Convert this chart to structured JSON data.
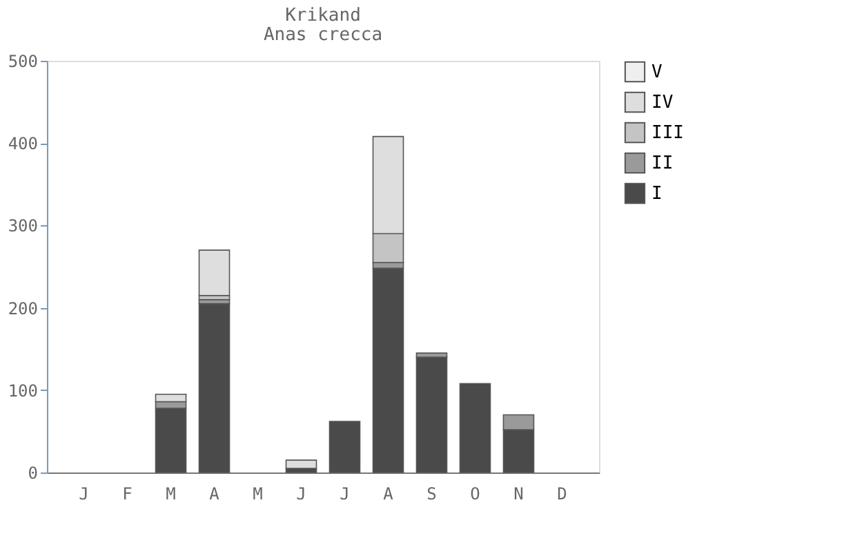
{
  "chart_data": {
    "type": "bar",
    "title": "Krikand",
    "subtitle": "Anas crecca",
    "stacked": true,
    "categories": [
      "J",
      "F",
      "M",
      "A",
      "M",
      "J",
      "J",
      "A",
      "S",
      "O",
      "N",
      "D"
    ],
    "series": [
      {
        "name": "I",
        "color": "#4a4a4a",
        "values": [
          0,
          0,
          78,
          205,
          0,
          5,
          62,
          248,
          140,
          108,
          52,
          0
        ]
      },
      {
        "name": "II",
        "color": "#9a9a9a",
        "values": [
          0,
          0,
          8,
          5,
          0,
          0,
          0,
          7,
          5,
          0,
          18,
          0
        ]
      },
      {
        "name": "III",
        "color": "#c4c4c4",
        "values": [
          0,
          0,
          0,
          5,
          0,
          0,
          0,
          35,
          0,
          0,
          0,
          0
        ]
      },
      {
        "name": "IV",
        "color": "#dedede",
        "values": [
          0,
          0,
          9,
          55,
          0,
          10,
          0,
          118,
          0,
          0,
          0,
          0
        ]
      },
      {
        "name": "V",
        "color": "#efefef",
        "values": [
          0,
          0,
          0,
          0,
          0,
          0,
          0,
          0,
          0,
          0,
          0,
          0
        ]
      }
    ],
    "ylim": [
      0,
      500
    ],
    "yticks": [
      0,
      100,
      200,
      300,
      400,
      500
    ],
    "grid": false,
    "legend": "right"
  }
}
